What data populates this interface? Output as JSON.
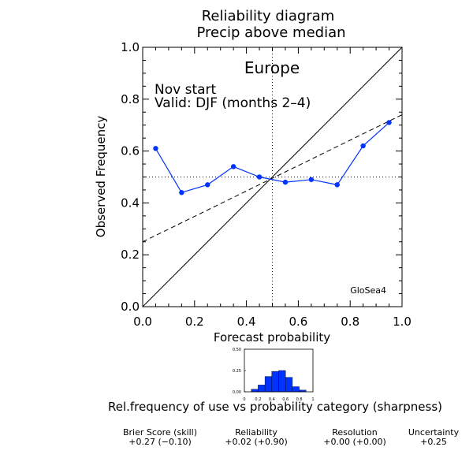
{
  "figure": {
    "title_line1": "Reliability diagram",
    "title_line2": "Precip above median",
    "region": "Europe",
    "info_line1": "Nov start",
    "info_line2": "Valid: DJF (months 2–4)",
    "model": "GloSea4",
    "sharpness_caption": "Rel.frequency of use vs probability category (sharpness)"
  },
  "chart_data": [
    {
      "type": "line",
      "name": "reliability",
      "xlabel": "Forecast probability",
      "ylabel": "Observed Frequency",
      "xlim": [
        0.0,
        1.0
      ],
      "ylim": [
        0.0,
        1.0
      ],
      "x_ticks": [
        "0.0",
        "0.2",
        "0.4",
        "0.6",
        "0.8",
        "1.0"
      ],
      "y_ticks": [
        "0.0",
        "0.2",
        "0.4",
        "0.6",
        "0.8",
        "1.0"
      ],
      "x": [
        0.05,
        0.15,
        0.25,
        0.35,
        0.45,
        0.55,
        0.65,
        0.75,
        0.85,
        0.95
      ],
      "y": [
        0.61,
        0.44,
        0.47,
        0.54,
        0.5,
        0.48,
        0.49,
        0.47,
        0.62,
        0.71
      ],
      "regression_line": {
        "intercept": 0.25,
        "slope": 0.49
      },
      "reference_lines": {
        "diagonal": true,
        "climatology_y": 0.5,
        "climatology_x": 0.5
      },
      "marker_color": "#0033ff"
    },
    {
      "type": "bar",
      "name": "sharpness",
      "xlim": [
        0,
        1
      ],
      "ylim": [
        0,
        0.5
      ],
      "x_ticks": [
        "0",
        "0.2",
        "0.4",
        "0.6",
        "0.8",
        "1"
      ],
      "y_ticks": [
        "0.00",
        "0.25",
        "0.50"
      ],
      "categories": [
        0.05,
        0.15,
        0.25,
        0.35,
        0.45,
        0.55,
        0.65,
        0.75,
        0.85,
        0.95
      ],
      "values": [
        0.0,
        0.03,
        0.08,
        0.18,
        0.24,
        0.25,
        0.17,
        0.06,
        0.02,
        0.0
      ],
      "bar_color": "#0033ff"
    }
  ],
  "scores": [
    {
      "label": "Brier Score (skill)",
      "value": "+0.27  (−0.10)"
    },
    {
      "label": "Reliability",
      "value": "+0.02  (+0.90)"
    },
    {
      "label": "Resolution",
      "value": "+0.00  (+0.00)"
    },
    {
      "label": "Uncertainty",
      "value": "+0.25"
    }
  ]
}
